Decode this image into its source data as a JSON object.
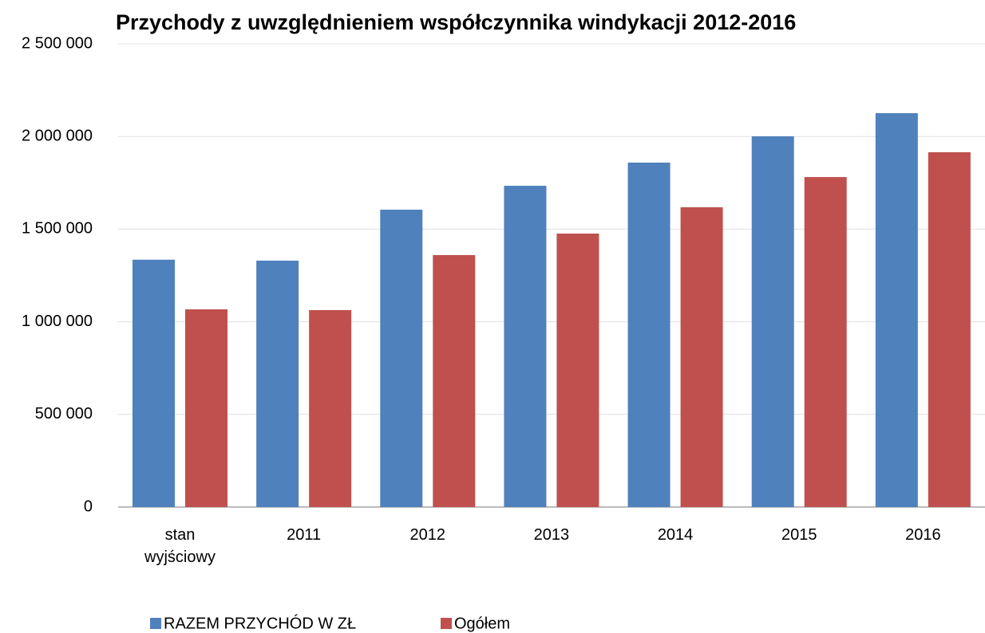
{
  "chart_data": {
    "type": "bar",
    "title": "Przychody z uwzględnieniem współczynnika windykacji 2012-2016",
    "categories": [
      "stan wyjściowy",
      "2011",
      "2012",
      "2013",
      "2014",
      "2015",
      "2016"
    ],
    "series": [
      {
        "name": "RAZEM PRZYCHÓD W ZŁ",
        "color": "#4f81bd",
        "values": [
          1335000,
          1330000,
          1605000,
          1734000,
          1859000,
          2001000,
          2126000
        ]
      },
      {
        "name": "Ogółem",
        "color": "#c0504d",
        "values": [
          1067000,
          1063000,
          1360000,
          1476000,
          1618000,
          1781000,
          1915000
        ]
      }
    ],
    "ylim": [
      0,
      2500000
    ],
    "yticks": [
      {
        "value": 0,
        "label": "0"
      },
      {
        "value": 500000,
        "label": "500 000"
      },
      {
        "value": 1000000,
        "label": "1 000 000"
      },
      {
        "value": 1500000,
        "label": "1 500 000"
      },
      {
        "value": 2000000,
        "label": "2 000 000"
      },
      {
        "value": 2500000,
        "label": "2 500 000"
      }
    ],
    "grid": true,
    "legend": "bottom"
  }
}
